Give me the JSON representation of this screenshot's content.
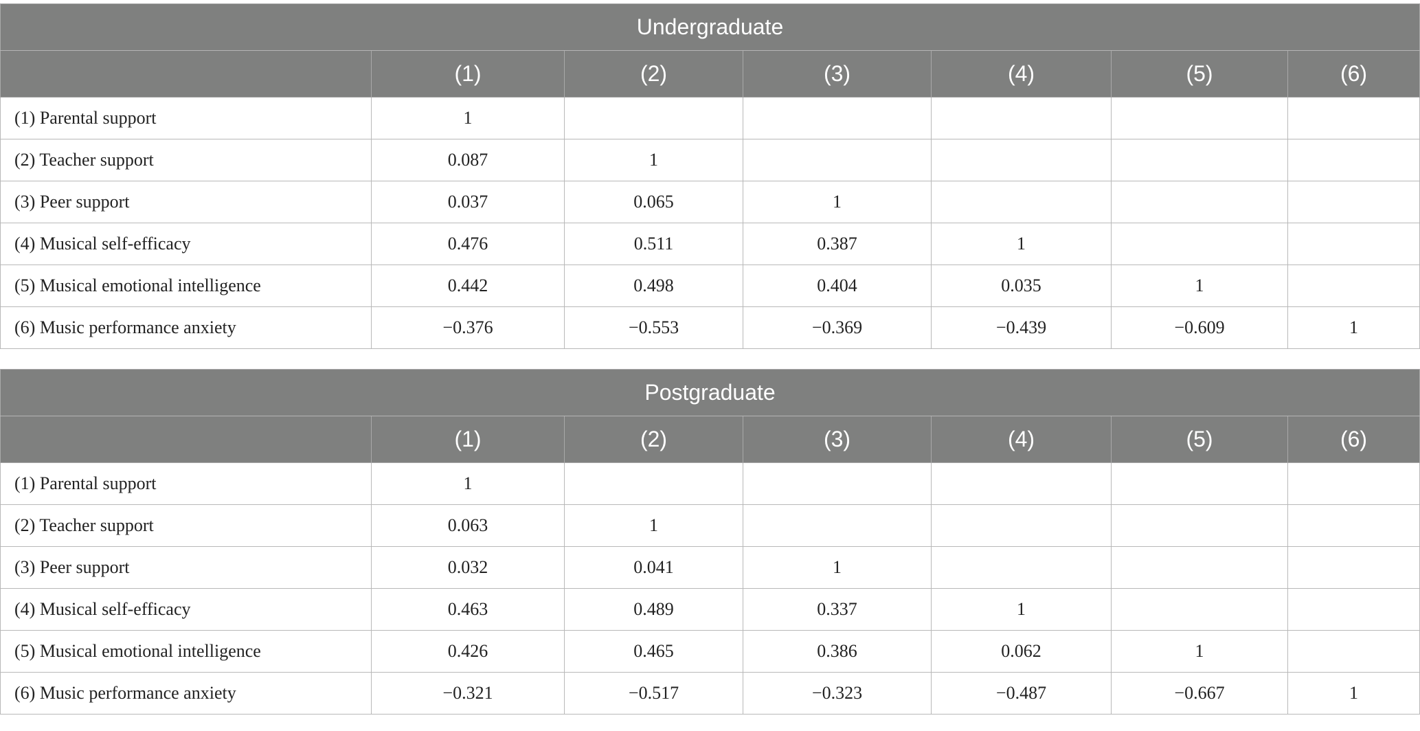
{
  "tables": [
    {
      "title": "Undergraduate",
      "columns": [
        "(1)",
        "(2)",
        "(3)",
        "(4)",
        "(5)",
        "(6)"
      ],
      "rows": [
        {
          "label": "(1) Parental support",
          "cells": [
            "1"
          ]
        },
        {
          "label": "(2) Teacher support",
          "cells": [
            "0.087",
            "1"
          ]
        },
        {
          "label": "(3) Peer support",
          "cells": [
            "0.037",
            "0.065",
            "1"
          ]
        },
        {
          "label": "(4) Musical self-efficacy",
          "cells": [
            "0.476",
            "0.511",
            "0.387",
            "1"
          ]
        },
        {
          "label": "(5) Musical emotional intelligence",
          "cells": [
            "0.442",
            "0.498",
            "0.404",
            "0.035",
            "1"
          ]
        },
        {
          "label": "(6) Music performance anxiety",
          "cells": [
            "−0.376",
            "−0.553",
            "−0.369",
            "−0.439",
            "−0.609",
            "1"
          ]
        }
      ]
    },
    {
      "title": "Postgraduate",
      "columns": [
        "(1)",
        "(2)",
        "(3)",
        "(4)",
        "(5)",
        "(6)"
      ],
      "rows": [
        {
          "label": "(1) Parental support",
          "cells": [
            "1"
          ]
        },
        {
          "label": "(2) Teacher support",
          "cells": [
            "0.063",
            "1"
          ]
        },
        {
          "label": "(3) Peer support",
          "cells": [
            "0.032",
            "0.041",
            "1"
          ]
        },
        {
          "label": "(4) Musical self-efficacy",
          "cells": [
            "0.463",
            "0.489",
            "0.337",
            "1"
          ]
        },
        {
          "label": "(5) Musical emotional intelligence",
          "cells": [
            "0.426",
            "0.465",
            "0.386",
            "0.062",
            "1"
          ]
        },
        {
          "label": "(6) Music performance anxiety",
          "cells": [
            "−0.321",
            "−0.517",
            "−0.323",
            "−0.487",
            "−0.667",
            "1"
          ]
        }
      ]
    }
  ]
}
